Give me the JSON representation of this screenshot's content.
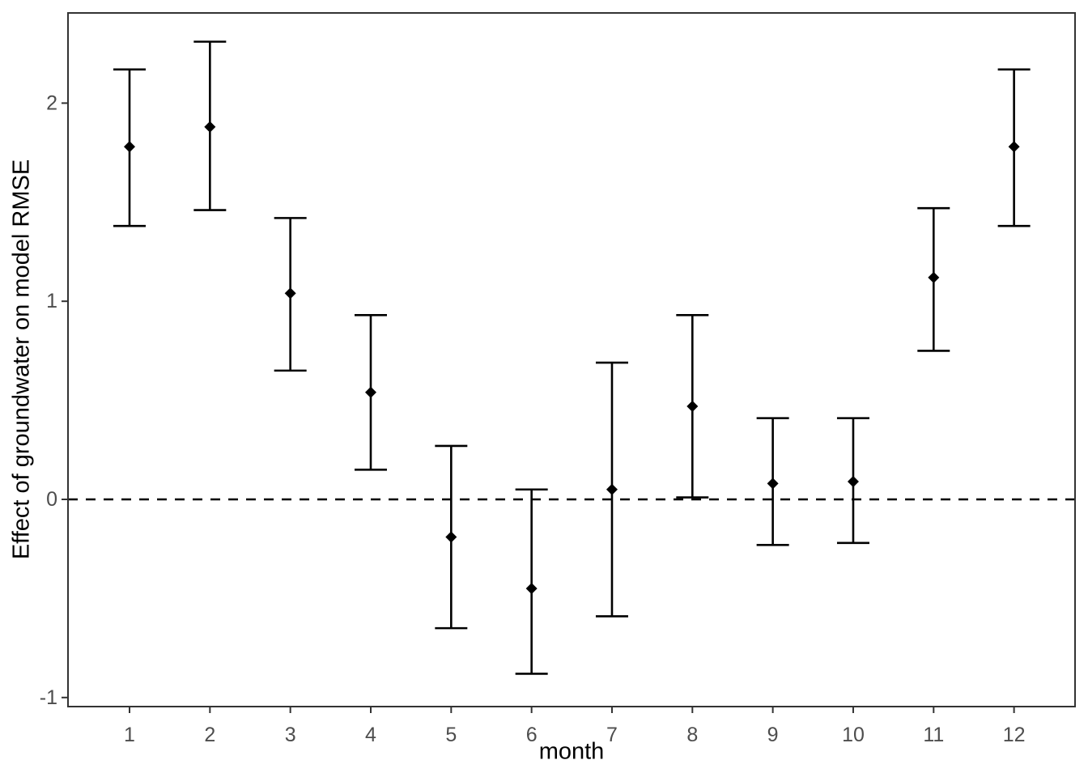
{
  "chart_data": {
    "type": "scatter",
    "subtype": "point-estimate-with-error-bars",
    "title": "",
    "xlabel": "month",
    "ylabel": "Effect of groundwater on model RMSE",
    "x_ticks": [
      1,
      2,
      3,
      4,
      5,
      6,
      7,
      8,
      9,
      10,
      11,
      12
    ],
    "x_tick_labels": [
      "1",
      "2",
      "3",
      "4",
      "5",
      "6",
      "7",
      "8",
      "9",
      "10",
      "11",
      "12"
    ],
    "y_ticks": [
      2,
      1,
      0,
      -1
    ],
    "y_tick_labels": [
      "2",
      "1",
      "0",
      "-1"
    ],
    "xlim": [
      0.23,
      12.76
    ],
    "ylim": [
      -1.05,
      2.46
    ],
    "grid": false,
    "legend": "none",
    "marker": "diamond",
    "reference_line": {
      "y": 0,
      "style": "dashed",
      "color": "#000000"
    },
    "series": [
      {
        "name": "effect-of-groundwater",
        "points": [
          {
            "x": 1,
            "y": 1.78,
            "ymin": 1.38,
            "ymax": 2.17
          },
          {
            "x": 2,
            "y": 1.88,
            "ymin": 1.46,
            "ymax": 2.31
          },
          {
            "x": 3,
            "y": 1.04,
            "ymin": 0.65,
            "ymax": 1.42
          },
          {
            "x": 4,
            "y": 0.54,
            "ymin": 0.15,
            "ymax": 0.93
          },
          {
            "x": 5,
            "y": -0.19,
            "ymin": -0.65,
            "ymax": 0.27
          },
          {
            "x": 6,
            "y": -0.45,
            "ymin": -0.88,
            "ymax": 0.05
          },
          {
            "x": 7,
            "y": 0.05,
            "ymin": -0.59,
            "ymax": 0.69
          },
          {
            "x": 8,
            "y": 0.47,
            "ymin": 0.01,
            "ymax": 0.93
          },
          {
            "x": 9,
            "y": 0.08,
            "ymin": -0.23,
            "ymax": 0.41
          },
          {
            "x": 10,
            "y": 0.09,
            "ymin": -0.22,
            "ymax": 0.41
          },
          {
            "x": 11,
            "y": 1.12,
            "ymin": 0.75,
            "ymax": 1.47
          },
          {
            "x": 12,
            "y": 1.78,
            "ymin": 1.38,
            "ymax": 2.17
          }
        ]
      }
    ],
    "style": {
      "background": "#FFFFFF",
      "panel_border_color": "#333333",
      "point_color": "#000000",
      "errorbar_color": "#000000",
      "tick_color": "#333333",
      "tick_label_color": "#4D4D4D",
      "axis_title_color": "#000000",
      "reference_line_color": "#000000"
    }
  }
}
